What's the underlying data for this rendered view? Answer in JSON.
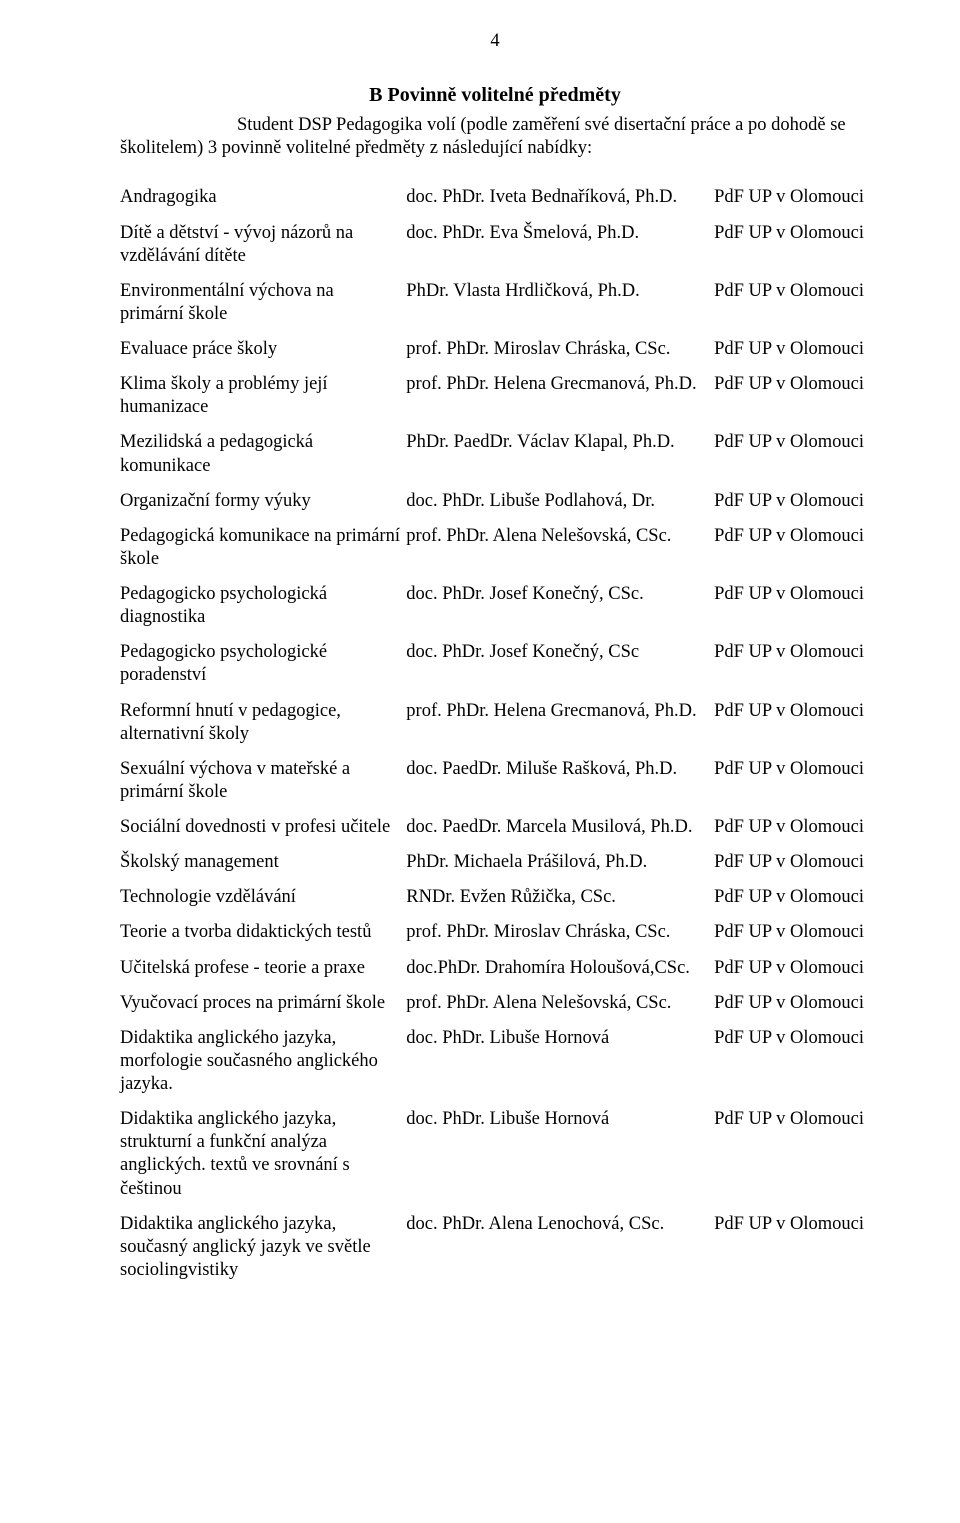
{
  "page_number": "4",
  "heading": "B  Povinně volitelné předměty",
  "intro_line1": "Student DSP Pedagogika volí (podle zaměření své disertační práce a po dohodě se",
  "intro_line2": "školitelem) 3 povinně volitelné předměty z následující nabídky:",
  "affiliation": "PdF UP v Olomouci",
  "rows": [
    {
      "subject": "Andragogika",
      "teacher": "doc. PhDr. Iveta Bednaříková, Ph.D."
    },
    {
      "subject": "Dítě a dětství - vývoj názorů na vzdělávání dítěte",
      "teacher": "doc. PhDr. Eva Šmelová, Ph.D."
    },
    {
      "subject": "Environmentální výchova na primární škole",
      "teacher": "PhDr. Vlasta Hrdličková, Ph.D."
    },
    {
      "subject": "Evaluace práce školy",
      "teacher": "prof. PhDr. Miroslav Chráska, CSc."
    },
    {
      "subject": "Klima školy a problémy její humanizace",
      "teacher": "prof. PhDr. Helena Grecmanová, Ph.D."
    },
    {
      "subject": "Mezilidská a pedagogická komunikace",
      "teacher": "PhDr. PaedDr. Václav Klapal, Ph.D."
    },
    {
      "subject": "Organizační formy výuky",
      "teacher": "doc. PhDr. Libuše Podlahová, Dr."
    },
    {
      "subject": "Pedagogická komunikace na primární škole",
      "teacher": "prof. PhDr. Alena Nelešovská, CSc."
    },
    {
      "subject": "Pedagogicko psychologická diagnostika",
      "teacher": "doc. PhDr. Josef Konečný, CSc."
    },
    {
      "subject": "Pedagogicko psychologické poradenství",
      "teacher": "doc. PhDr. Josef Konečný, CSc"
    },
    {
      "subject": "Reformní hnutí v pedagogice, alternativní školy",
      "teacher": "prof. PhDr. Helena Grecmanová, Ph.D."
    },
    {
      "subject": "Sexuální výchova v mateřské a primární škole",
      "teacher": "doc. PaedDr. Miluše Rašková, Ph.D."
    },
    {
      "subject": "Sociální dovednosti v profesi učitele",
      "teacher": "doc. PaedDr. Marcela Musilová, Ph.D."
    },
    {
      "subject": "Školský management",
      "teacher": "PhDr. Michaela Prášilová, Ph.D."
    },
    {
      "subject": "Technologie vzdělávání",
      "teacher": "RNDr. Evžen Růžička, CSc."
    },
    {
      "subject": "Teorie a tvorba didaktických testů",
      "teacher": "prof. PhDr. Miroslav Chráska, CSc."
    },
    {
      "subject": "Učitelská profese - teorie a praxe",
      "teacher": "doc.PhDr. Drahomíra Holoušová,CSc."
    },
    {
      "subject": "Vyučovací proces na primární škole",
      "teacher": "prof. PhDr. Alena Nelešovská, CSc."
    },
    {
      "subject": "Didaktika anglického jazyka, morfologie současného anglického jazyka.",
      "teacher": "doc. PhDr. Libuše Hornová"
    },
    {
      "subject": "Didaktika anglického jazyka, strukturní a funkční analýza anglických. textů  ve srovnání s češtinou",
      "teacher": "doc. PhDr. Libuše Hornová"
    },
    {
      "subject": "Didaktika anglického jazyka, současný anglický jazyk ve světle sociolingvistiky",
      "teacher": "doc. PhDr. Alena Lenochová, CSc."
    }
  ]
}
